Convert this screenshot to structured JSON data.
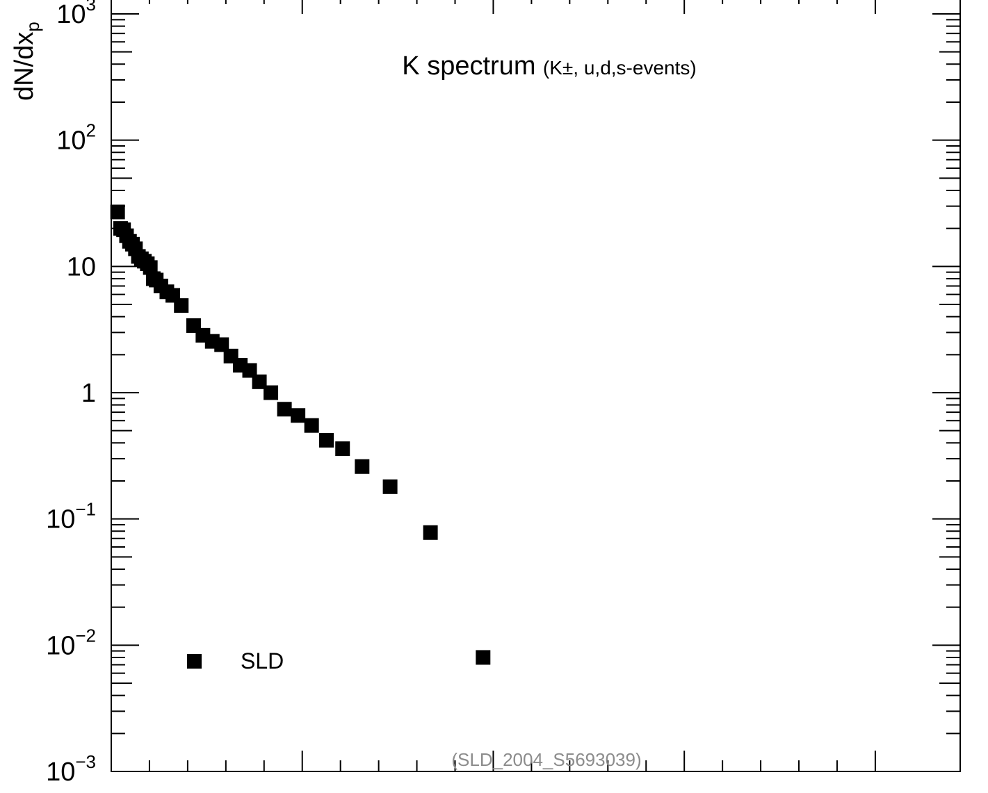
{
  "chart_data": {
    "type": "scatter",
    "title_main": "K spectrum",
    "title_sub": "(K±, u,d,s-events)",
    "ylabel": "dN/dx",
    "ylabel_sub": "p",
    "yscale": "log",
    "ylim": [
      0.001,
      1000
    ],
    "ytick_labels": [
      {
        "value": 1000,
        "base": "10",
        "exp": "3"
      },
      {
        "value": 100,
        "base": "10",
        "exp": "2"
      },
      {
        "value": 10,
        "base": "10",
        "exp": ""
      },
      {
        "value": 1,
        "base": "1",
        "exp": ""
      },
      {
        "value": 0.1,
        "base": "10",
        "exp": "−1"
      },
      {
        "value": 0.01,
        "base": "10",
        "exp": "−2"
      },
      {
        "value": 0.001,
        "base": "10",
        "exp": "−3"
      }
    ],
    "xlim": [
      0,
      1
    ],
    "legend": {
      "label": "SLD",
      "position": "bottom-left"
    },
    "reference": "(SLD_2004_S5693039)",
    "marker_color": "#000000",
    "series": [
      {
        "name": "SLD",
        "points": [
          [
            0.0075,
            27.0
          ],
          [
            0.011,
            20.0
          ],
          [
            0.0145,
            19.5
          ],
          [
            0.018,
            17.5
          ],
          [
            0.0215,
            15.8
          ],
          [
            0.025,
            15.0
          ],
          [
            0.0285,
            13.8
          ],
          [
            0.032,
            12.0
          ],
          [
            0.0355,
            11.5
          ],
          [
            0.039,
            11.0
          ],
          [
            0.0425,
            10.5
          ],
          [
            0.046,
            9.8
          ],
          [
            0.0495,
            8.0
          ],
          [
            0.053,
            7.8
          ],
          [
            0.0585,
            7.0
          ],
          [
            0.0655,
            6.3
          ],
          [
            0.0725,
            5.9
          ],
          [
            0.0825,
            4.9
          ],
          [
            0.097,
            3.4
          ],
          [
            0.108,
            2.85
          ],
          [
            0.119,
            2.55
          ],
          [
            0.13,
            2.4
          ],
          [
            0.141,
            1.95
          ],
          [
            0.152,
            1.65
          ],
          [
            0.163,
            1.5
          ],
          [
            0.1745,
            1.22
          ],
          [
            0.188,
            1.0
          ],
          [
            0.204,
            0.74
          ],
          [
            0.22,
            0.66
          ],
          [
            0.236,
            0.55
          ],
          [
            0.2535,
            0.42
          ],
          [
            0.2725,
            0.36
          ],
          [
            0.2955,
            0.26
          ],
          [
            0.3285,
            0.18
          ],
          [
            0.376,
            0.078
          ],
          [
            0.438,
            0.008
          ]
        ]
      }
    ]
  }
}
